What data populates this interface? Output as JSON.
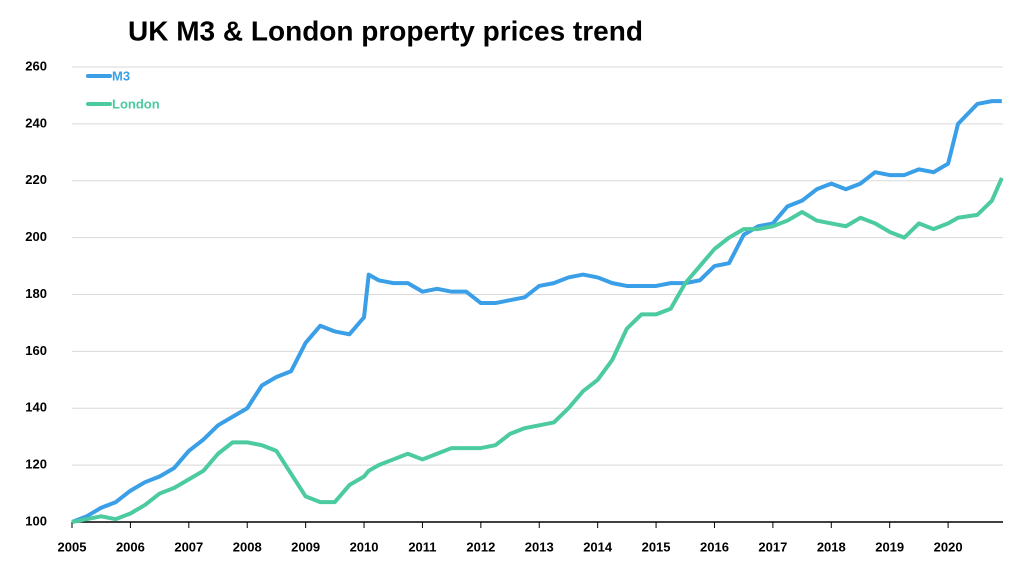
{
  "chart_data": {
    "type": "line",
    "title": "UK M3 & London property prices trend",
    "x": [
      2005,
      2005.25,
      2005.5,
      2005.75,
      2006,
      2006.25,
      2006.5,
      2006.75,
      2007,
      2007.25,
      2007.5,
      2007.75,
      2008,
      2008.25,
      2008.5,
      2008.75,
      2009,
      2009.25,
      2009.5,
      2009.75,
      2010,
      2010.08,
      2010.25,
      2010.5,
      2010.75,
      2011,
      2011.25,
      2011.5,
      2011.75,
      2012,
      2012.25,
      2012.5,
      2012.75,
      2013,
      2013.25,
      2013.5,
      2013.75,
      2014,
      2014.25,
      2014.5,
      2014.75,
      2015,
      2015.25,
      2015.5,
      2015.75,
      2016,
      2016.25,
      2016.5,
      2016.75,
      2017,
      2017.25,
      2017.5,
      2017.75,
      2018,
      2018.25,
      2018.5,
      2018.75,
      2019,
      2019.25,
      2019.5,
      2019.75,
      2020,
      2020.17,
      2020.5,
      2020.75,
      2020.92
    ],
    "series": [
      {
        "name": "M3",
        "color": "#3a9fe6",
        "values": [
          100,
          102,
          105,
          107,
          111,
          114,
          116,
          119,
          125,
          129,
          134,
          137,
          140,
          148,
          151,
          153,
          163,
          169,
          167,
          166,
          172,
          187,
          185,
          184,
          184,
          181,
          182,
          181,
          181,
          177,
          177,
          178,
          179,
          183,
          184,
          186,
          187,
          186,
          184,
          183,
          183,
          183,
          184,
          184,
          185,
          190,
          191,
          201,
          204,
          205,
          211,
          213,
          217,
          219,
          217,
          219,
          223,
          222,
          222,
          224,
          223,
          226,
          240,
          247,
          248,
          248
        ]
      },
      {
        "name": "London",
        "color": "#4ccaa0",
        "values": [
          100,
          101,
          102,
          101,
          103,
          106,
          110,
          112,
          115,
          118,
          124,
          128,
          128,
          127,
          125,
          117,
          109,
          107,
          107,
          113,
          116,
          118,
          120,
          122,
          124,
          122,
          124,
          126,
          126,
          126,
          127,
          131,
          133,
          134,
          135,
          140,
          146,
          150,
          157,
          168,
          173,
          173,
          175,
          184,
          190,
          196,
          200,
          203,
          203,
          204,
          206,
          209,
          206,
          205,
          204,
          207,
          205,
          202,
          200,
          205,
          203,
          205,
          207,
          208,
          213,
          221
        ]
      }
    ],
    "xlim": [
      2005,
      2020.94
    ],
    "xticks": [
      2005,
      2006,
      2007,
      2008,
      2009,
      2010,
      2011,
      2012,
      2013,
      2014,
      2015,
      2016,
      2017,
      2018,
      2019,
      2020
    ],
    "ylim": [
      100,
      260
    ],
    "yticks": [
      100,
      120,
      140,
      160,
      180,
      200,
      220,
      240,
      260
    ],
    "grid": true,
    "legend": "top-left"
  }
}
